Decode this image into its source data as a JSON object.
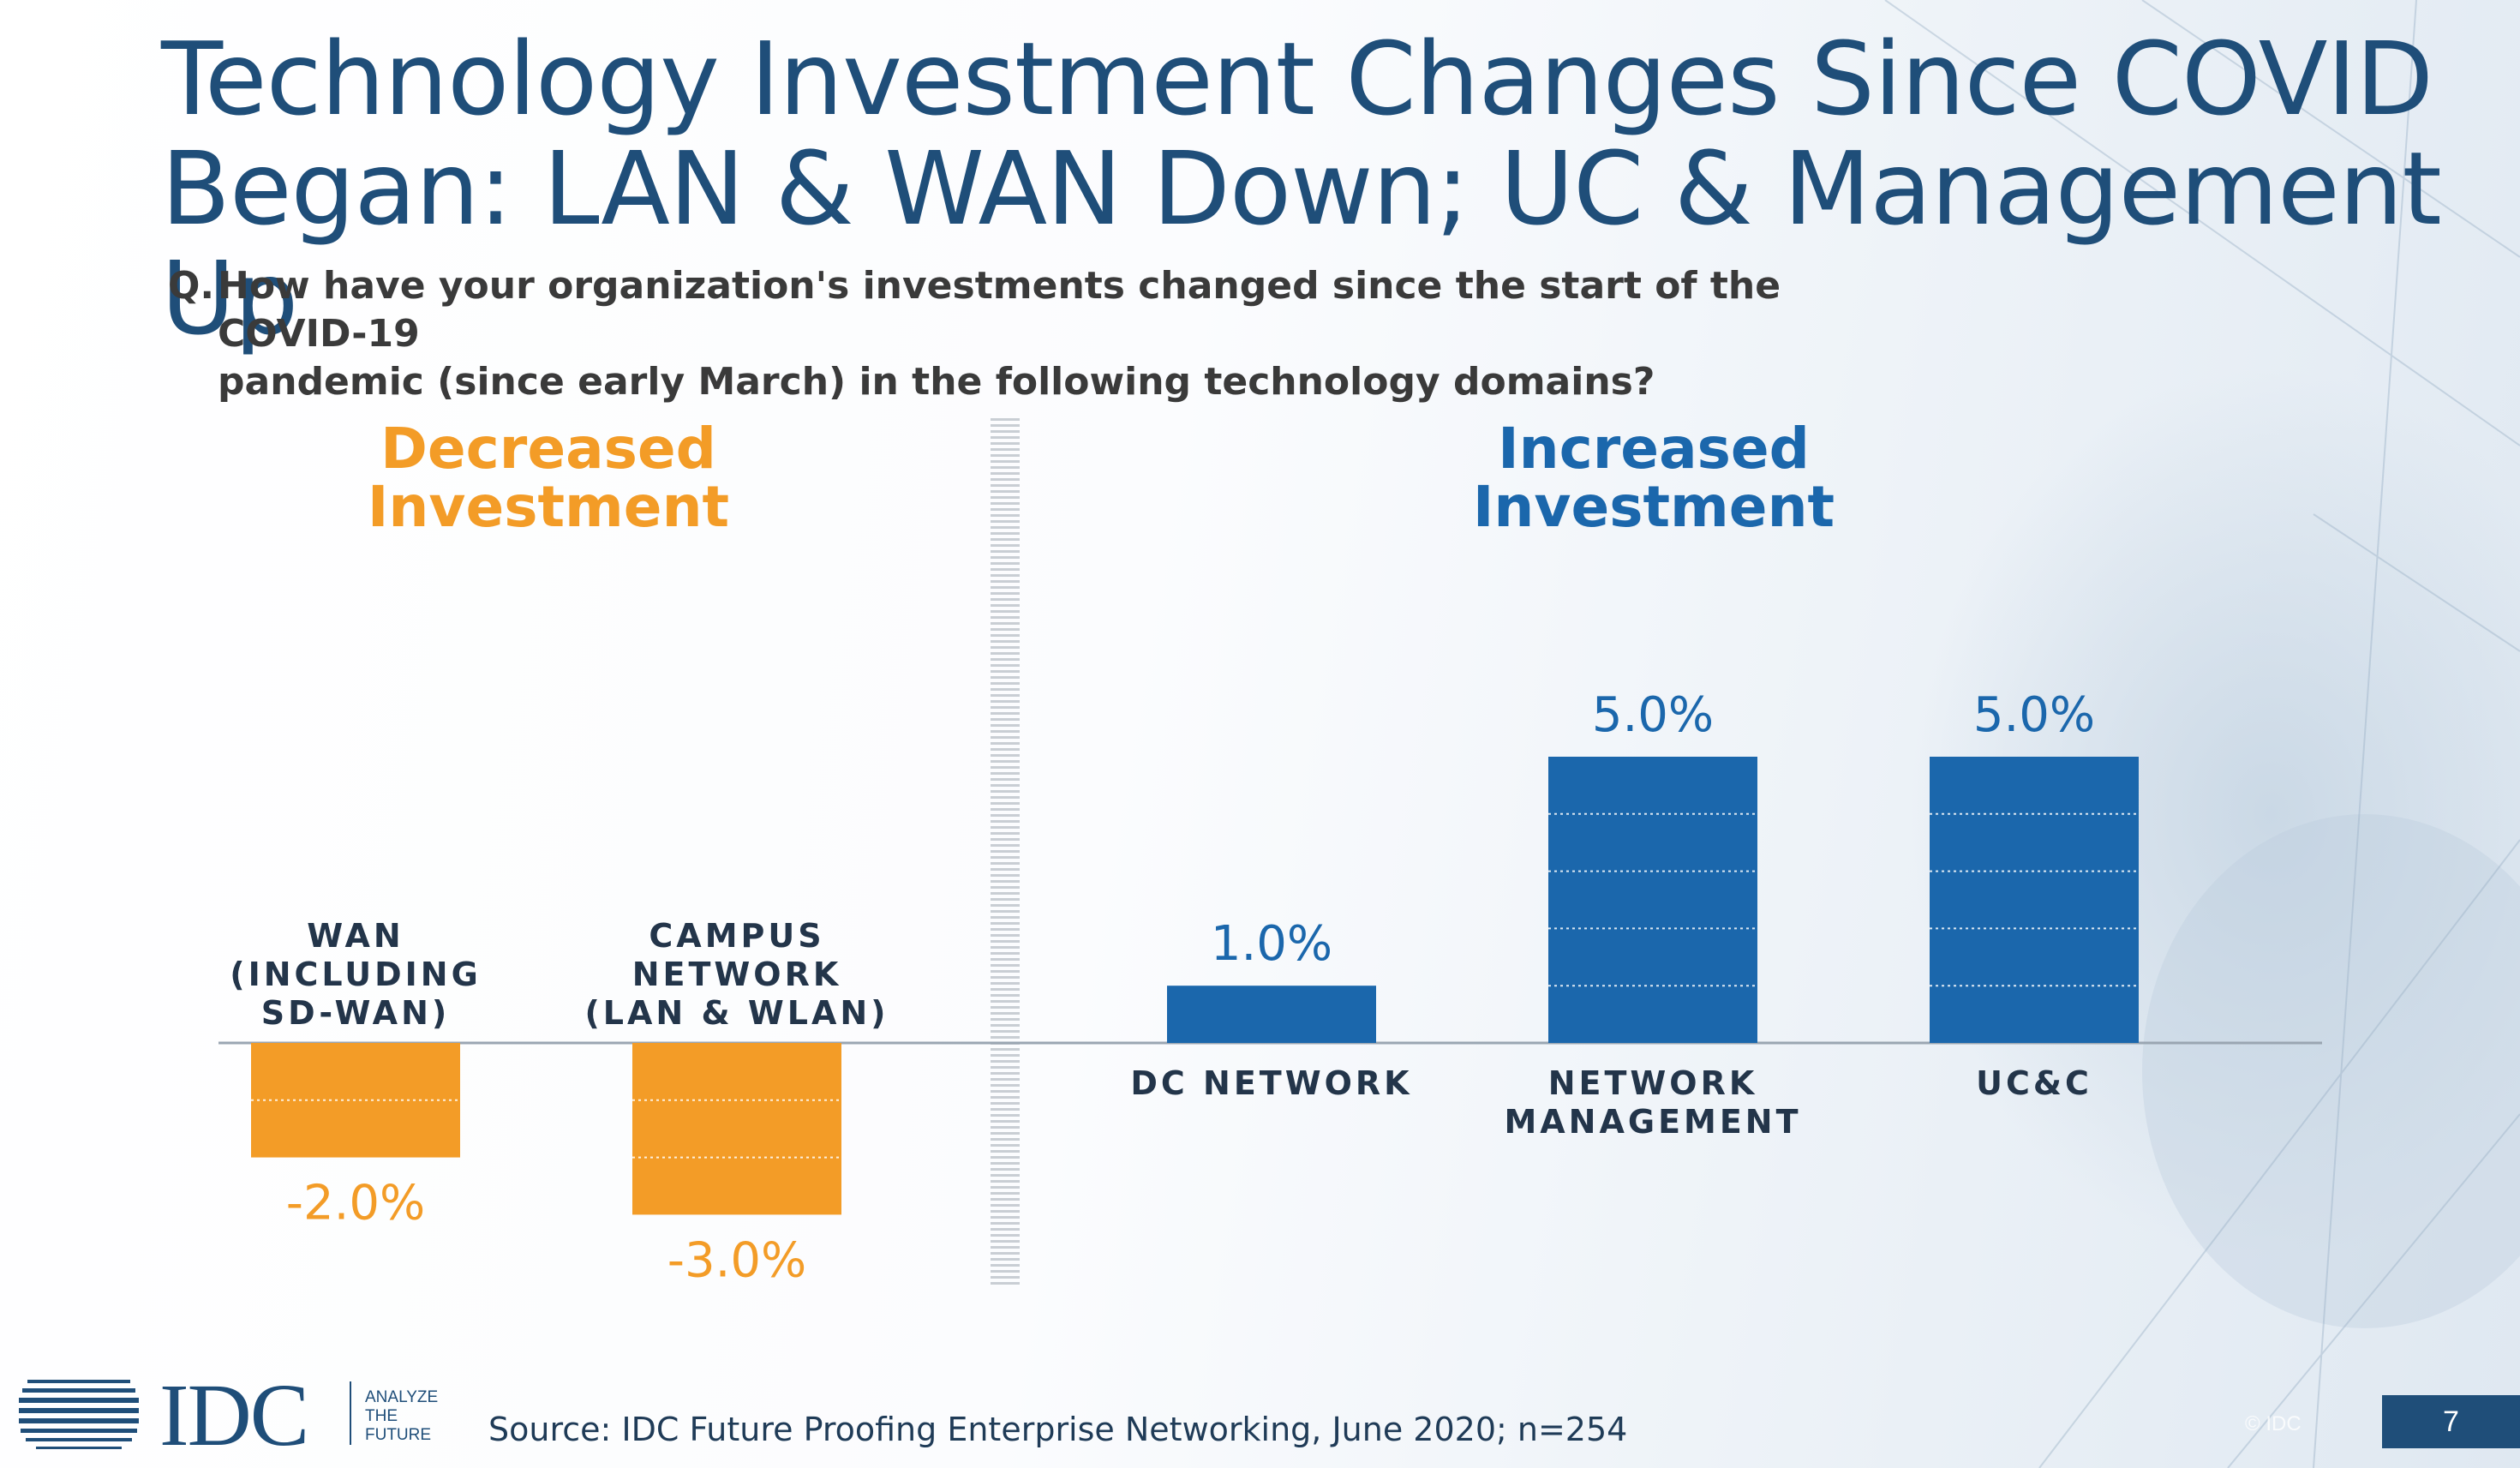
{
  "slide": {
    "title_line1": "Technology Investment Changes Since COVID",
    "title_line2": "Began: LAN & WAN Down; UC & Management Up",
    "question_prefix": "Q.",
    "question_line1": "How have your organization's investments changed since the start of the COVID-19",
    "question_line2": "pandemic (since early March) in the following technology domains?",
    "section_decreased_line1": "Decreased",
    "section_decreased_line2": "Investment",
    "section_increased_line1": "Increased",
    "section_increased_line2": "Investment",
    "source": "Source: IDC Future Proofing Enterprise Networking, June 2020; n=254",
    "page_number": "7",
    "copyright": "© IDC"
  },
  "logo": {
    "wordmark": "IDC",
    "tagline_line1": "ANALYZE",
    "tagline_line2": "THE",
    "tagline_line3": "FUTURE"
  },
  "colors": {
    "decreased": "#f39c27",
    "increased": "#1b67ac",
    "title": "#1f4e79",
    "category_label": "#23354a"
  },
  "chart_data": {
    "type": "bar",
    "categories": [
      [
        "WAN",
        "(INCLUDING",
        "SD-WAN)"
      ],
      [
        "CAMPUS",
        "NETWORK",
        "(LAN & WLAN)"
      ],
      [
        "DC NETWORK"
      ],
      [
        "NETWORK",
        "MANAGEMENT"
      ],
      [
        "UC&C"
      ]
    ],
    "values": [
      -2.0,
      -3.0,
      1.0,
      5.0,
      5.0
    ],
    "value_labels": [
      "-2.0%",
      "-3.0%",
      "1.0%",
      "5.0%",
      "5.0%"
    ],
    "groups": [
      "Decreased Investment",
      "Decreased Investment",
      "Increased Investment",
      "Increased Investment",
      "Increased Investment"
    ],
    "unit": "%",
    "ylim": [
      -3,
      5
    ],
    "grid": false,
    "bar_segment_step": 1.0
  }
}
